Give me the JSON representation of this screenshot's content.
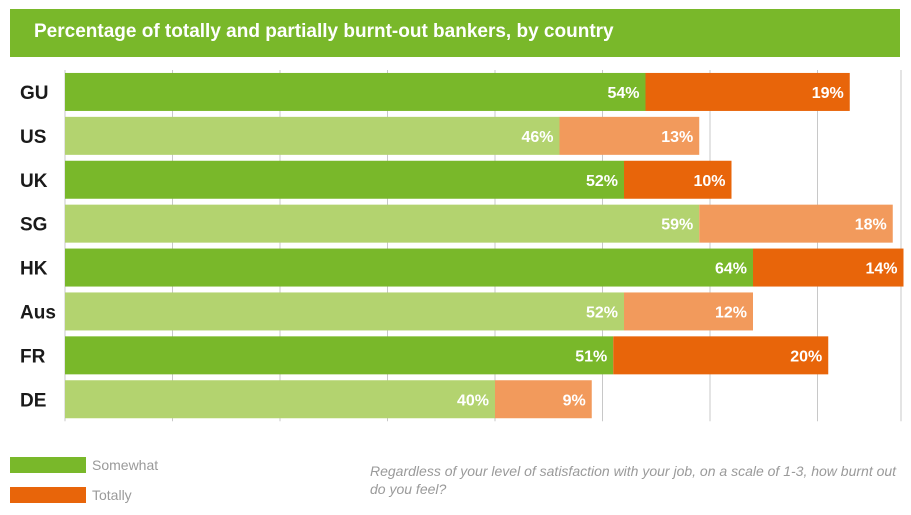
{
  "title": "Percentage of totally and partially burnt-out bankers, by country",
  "note": "Regardless of your level of satisfaction with your job, on a scale of 1-3, how burnt out do you feel?",
  "legend": [
    {
      "label": "Somewhat",
      "color": "#79b82a"
    },
    {
      "label": "Totally",
      "color": "#e8650a"
    }
  ],
  "colors": {
    "somewhat_dark": "#79b82a",
    "somewhat_light": "#b3d36f",
    "totally_dark": "#e8650a",
    "totally_light": "#f29a5c",
    "grid": "#c8c8c8"
  },
  "chart_data": {
    "type": "bar",
    "orientation": "horizontal",
    "stacked": true,
    "categories": [
      "GU",
      "US",
      "UK",
      "SG",
      "HK",
      "Aus",
      "FR",
      "DE"
    ],
    "series": [
      {
        "name": "Somewhat",
        "values": [
          54,
          46,
          52,
          59,
          64,
          52,
          51,
          40
        ],
        "labels": [
          "54%",
          "46%",
          "52%",
          "59%",
          "64%",
          "52%",
          "51%",
          "40%"
        ]
      },
      {
        "name": "Totally",
        "values": [
          19,
          13,
          10,
          18,
          14,
          12,
          20,
          9
        ],
        "labels": [
          "19%",
          "13%",
          "10%",
          "18%",
          "14%",
          "12%",
          "20%",
          "9%"
        ]
      }
    ],
    "xlim": [
      0,
      79
    ],
    "grid": true,
    "legend_position": "bottom-left"
  }
}
